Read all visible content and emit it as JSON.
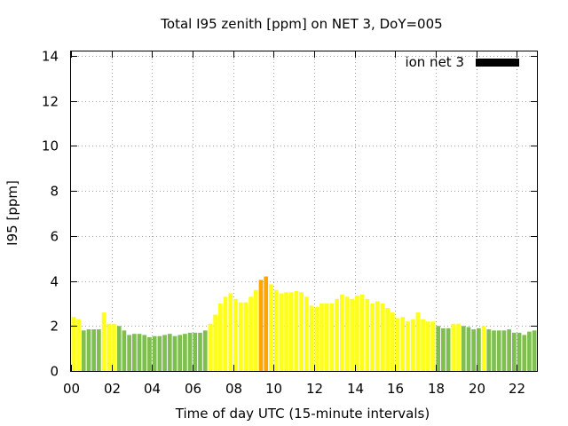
{
  "chart_data": {
    "type": "bar",
    "title": "Total I95 zenith [ppm] on NET 3, DoY=005",
    "xlabel": "Time of day UTC (15-minute intervals)",
    "ylabel": "I95 [ppm]",
    "xlim": [
      0,
      23
    ],
    "ylim": [
      0,
      14.2
    ],
    "xticks": [
      "00",
      "02",
      "04",
      "06",
      "08",
      "10",
      "12",
      "14",
      "16",
      "18",
      "20",
      "22"
    ],
    "yticks": [
      "0",
      "2",
      "4",
      "6",
      "8",
      "10",
      "12",
      "14"
    ],
    "grid": true,
    "legend": {
      "position": "top-right",
      "label": "ion net 3",
      "color": "#000000"
    },
    "bar_interval_hours": 0.25,
    "colors": {
      "low": "#7fbf4f",
      "medium": "#ffff1a",
      "high": "#ffa500"
    },
    "series": [
      {
        "name": "ion net 3",
        "values": [
          2.4,
          2.3,
          1.8,
          1.85,
          1.85,
          1.85,
          2.6,
          2.1,
          2.1,
          2.0,
          1.8,
          1.6,
          1.65,
          1.65,
          1.6,
          1.5,
          1.55,
          1.55,
          1.6,
          1.65,
          1.55,
          1.6,
          1.65,
          1.7,
          1.7,
          1.7,
          1.8,
          2.1,
          2.5,
          3.0,
          3.3,
          3.45,
          3.2,
          3.05,
          3.05,
          3.3,
          3.6,
          4.05,
          4.2,
          3.85,
          3.6,
          3.45,
          3.5,
          3.5,
          3.55,
          3.5,
          3.3,
          2.9,
          2.85,
          3.0,
          3.0,
          3.0,
          3.2,
          3.4,
          3.3,
          3.2,
          3.35,
          3.4,
          3.2,
          3.0,
          3.1,
          3.0,
          2.8,
          2.6,
          2.35,
          2.4,
          2.2,
          2.3,
          2.6,
          2.3,
          2.2,
          2.2,
          2.0,
          1.9,
          1.9,
          2.1,
          2.1,
          2.0,
          1.95,
          1.85,
          1.9,
          2.0,
          1.85,
          1.8,
          1.8,
          1.8,
          1.85,
          1.7,
          1.7,
          1.6,
          1.75,
          1.8
        ],
        "levels": [
          "medium",
          "medium",
          "low",
          "low",
          "low",
          "low",
          "medium",
          "medium",
          "medium",
          "low",
          "low",
          "low",
          "low",
          "low",
          "low",
          "low",
          "low",
          "low",
          "low",
          "low",
          "low",
          "low",
          "low",
          "low",
          "low",
          "low",
          "low",
          "medium",
          "medium",
          "medium",
          "medium",
          "medium",
          "medium",
          "medium",
          "medium",
          "medium",
          "medium",
          "high",
          "high",
          "medium",
          "medium",
          "medium",
          "medium",
          "medium",
          "medium",
          "medium",
          "medium",
          "medium",
          "medium",
          "medium",
          "medium",
          "medium",
          "medium",
          "medium",
          "medium",
          "medium",
          "medium",
          "medium",
          "medium",
          "medium",
          "medium",
          "medium",
          "medium",
          "medium",
          "medium",
          "medium",
          "medium",
          "medium",
          "medium",
          "medium",
          "medium",
          "medium",
          "low",
          "low",
          "low",
          "medium",
          "medium",
          "low",
          "low",
          "low",
          "low",
          "medium",
          "low",
          "low",
          "low",
          "low",
          "low",
          "low",
          "low",
          "low",
          "low",
          "low"
        ]
      }
    ]
  }
}
